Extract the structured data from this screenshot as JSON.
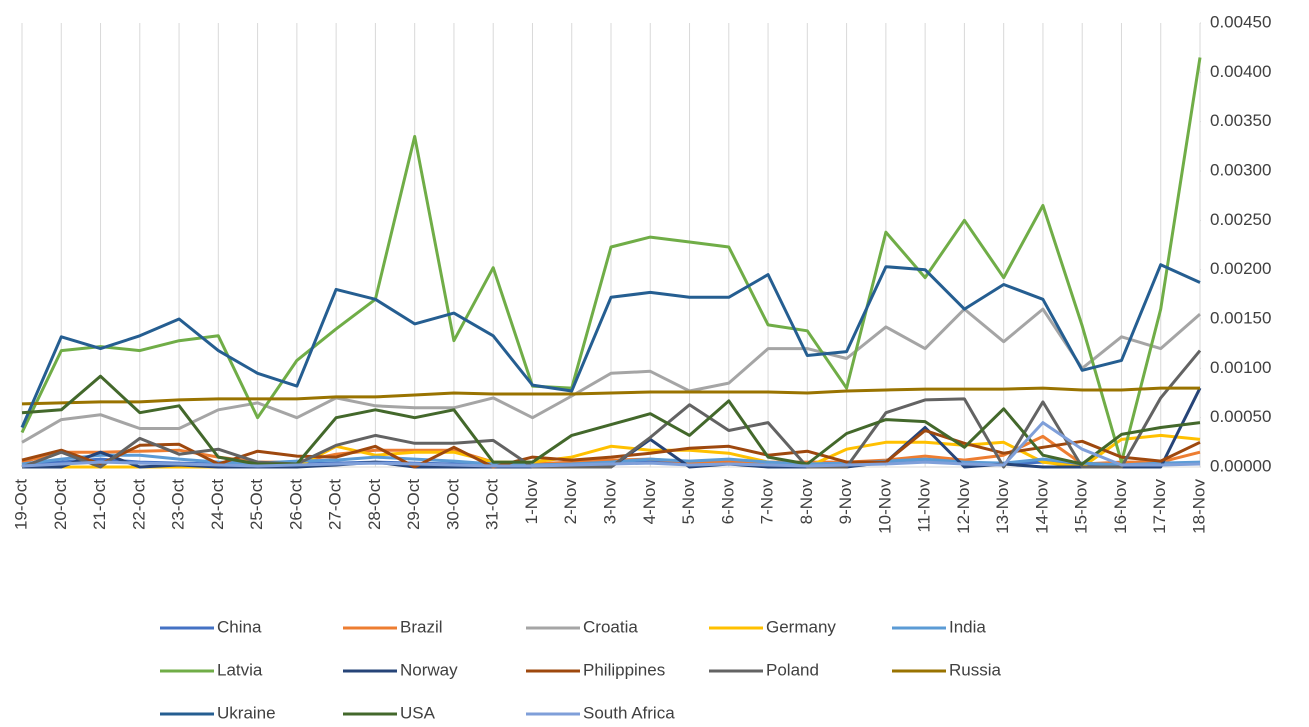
{
  "chart_data": {
    "type": "line",
    "categories": [
      "19-Oct",
      "20-Oct",
      "21-Oct",
      "22-Oct",
      "23-Oct",
      "24-Oct",
      "25-Oct",
      "26-Oct",
      "27-Oct",
      "28-Oct",
      "29-Oct",
      "30-Oct",
      "31-Oct",
      "1-Nov",
      "2-Nov",
      "3-Nov",
      "4-Nov",
      "5-Nov",
      "6-Nov",
      "7-Nov",
      "8-Nov",
      "9-Nov",
      "10-Nov",
      "11-Nov",
      "12-Nov",
      "13-Nov",
      "14-Nov",
      "15-Nov",
      "16-Nov",
      "17-Nov",
      "18-Nov"
    ],
    "ylim": [
      0,
      0.0045
    ],
    "yticks": [
      {
        "value": 0,
        "label": "0.00000"
      },
      {
        "value": 0.0005,
        "label": "0.00050"
      },
      {
        "value": 0.001,
        "label": "0.00100"
      },
      {
        "value": 0.0015,
        "label": "0.00150"
      },
      {
        "value": 0.002,
        "label": "0.00200"
      },
      {
        "value": 0.0025,
        "label": "0.00250"
      },
      {
        "value": 0.003,
        "label": "0.00300"
      },
      {
        "value": 0.0035,
        "label": "0.00350"
      },
      {
        "value": 0.004,
        "label": "0.00400"
      },
      {
        "value": 0.0045,
        "label": "0.00450"
      }
    ],
    "grid": "x",
    "y_axis_side": "right",
    "series": [
      {
        "name": "China",
        "color": "#4472c4",
        "values": [
          2e-05,
          5e-05,
          8e-05,
          5e-05,
          4e-05,
          3e-05,
          2e-05,
          3e-05,
          4e-05,
          5e-05,
          4e-05,
          3e-05,
          2e-05,
          2e-05,
          3e-05,
          4e-05,
          6e-05,
          4e-05,
          5e-05,
          3e-05,
          2e-05,
          3e-05,
          4e-05,
          6e-05,
          4e-05,
          3e-05,
          5e-05,
          3e-05,
          2e-05,
          3e-05,
          4e-05
        ]
      },
      {
        "name": "Brazil",
        "color": "#ed7d31",
        "values": [
          5e-05,
          0.00015,
          0.00015,
          0.00016,
          0.00017,
          0.0001,
          5e-05,
          5e-05,
          0.00013,
          0.00017,
          0.00017,
          0.00017,
          5e-05,
          3e-05,
          5e-05,
          7e-05,
          8e-05,
          5e-05,
          6e-05,
          5e-05,
          5e-05,
          5e-05,
          7e-05,
          0.00011,
          7e-05,
          0.00012,
          0.00031,
          3e-05,
          5e-05,
          5e-05,
          0.00015
        ]
      },
      {
        "name": "Croatia",
        "color": "#a5a5a5",
        "values": [
          0.00025,
          0.00048,
          0.00053,
          0.00039,
          0.00039,
          0.00058,
          0.00065,
          0.0005,
          0.0007,
          0.00062,
          0.0006,
          0.0006,
          0.0007,
          0.0005,
          0.00072,
          0.00095,
          0.00097,
          0.00077,
          0.00085,
          0.0012,
          0.0012,
          0.0011,
          0.00142,
          0.0012,
          0.0016,
          0.00127,
          0.0016,
          0.001,
          0.00132,
          0.0012,
          0.00155
        ]
      },
      {
        "name": "Germany",
        "color": "#ffc000",
        "values": [
          0,
          0,
          0,
          0,
          0,
          0,
          0,
          0,
          0.00021,
          0.00012,
          0.00015,
          0.00015,
          5e-05,
          5e-05,
          0.0001,
          0.00021,
          0.00017,
          0.00017,
          0.00014,
          5e-05,
          0,
          0.00018,
          0.00025,
          0.00025,
          0.00022,
          0.00025,
          5e-05,
          0,
          0.00028,
          0.00032,
          0.00028
        ]
      },
      {
        "name": "India",
        "color": "#5b9bd5",
        "values": [
          3e-05,
          8e-05,
          0.00012,
          0.00012,
          8e-05,
          5e-05,
          4e-05,
          6e-05,
          7e-05,
          0.0001,
          8e-05,
          6e-05,
          3e-05,
          2e-05,
          3e-05,
          5e-05,
          8e-05,
          6e-05,
          8e-05,
          5e-05,
          3e-05,
          4e-05,
          6e-05,
          8e-05,
          5e-05,
          4e-05,
          8e-05,
          4e-05,
          2e-05,
          4e-05,
          5e-05
        ]
      },
      {
        "name": "Latvia",
        "color": "#70ad47",
        "values": [
          0.00035,
          0.00118,
          0.00122,
          0.00118,
          0.00128,
          0.00133,
          0.0005,
          0.00108,
          0.0014,
          0.0017,
          0.00335,
          0.00128,
          0.00202,
          0.00082,
          0.0008,
          0.00223,
          0.00233,
          0.00228,
          0.00223,
          0.00144,
          0.00138,
          0.0008,
          0.00238,
          0.00192,
          0.0025,
          0.00192,
          0.00265,
          0.00143,
          5e-05,
          0.0016,
          0.00415
        ]
      },
      {
        "name": "Norway",
        "color": "#264478",
        "values": [
          0,
          0,
          0.00015,
          0,
          2e-05,
          0,
          0,
          0,
          2e-05,
          5e-05,
          0,
          0,
          0,
          0,
          0,
          0,
          0.00028,
          0,
          3e-05,
          0,
          0,
          0,
          5e-05,
          0.0004,
          0,
          3e-05,
          0,
          0,
          0,
          0,
          0.0008
        ]
      },
      {
        "name": "Philippines",
        "color": "#9e480e",
        "values": [
          7e-05,
          0.00017,
          3e-05,
          0.00022,
          0.00023,
          3e-05,
          0.00016,
          0.00011,
          0.0001,
          0.00021,
          0,
          0.0002,
          0,
          0.0001,
          7e-05,
          0.0001,
          0.00014,
          0.00019,
          0.00021,
          0.00012,
          0.00016,
          5e-05,
          5e-05,
          0.00037,
          0.00024,
          0.00014,
          0.0002,
          0.00026,
          0.0001,
          6e-05,
          0.00025
        ]
      },
      {
        "name": "Poland",
        "color": "#636363",
        "values": [
          0,
          0.00015,
          0,
          0.00029,
          0.00013,
          0.00018,
          5e-05,
          3e-05,
          0.00022,
          0.00032,
          0.00024,
          0.00024,
          0.00027,
          0,
          0,
          0,
          0.0003,
          0.00063,
          0.00037,
          0.00045,
          0,
          0,
          0.00055,
          0.00068,
          0.00069,
          0,
          0.00066,
          0,
          0,
          0.0007,
          0.00118
        ]
      },
      {
        "name": "Russia",
        "color": "#997300",
        "values": [
          0.00064,
          0.00065,
          0.00066,
          0.00066,
          0.00068,
          0.00069,
          0.00069,
          0.00069,
          0.00071,
          0.00071,
          0.00073,
          0.00075,
          0.00074,
          0.00074,
          0.00074,
          0.00075,
          0.00076,
          0.00076,
          0.00076,
          0.00076,
          0.00075,
          0.00077,
          0.00078,
          0.00079,
          0.00079,
          0.00079,
          0.0008,
          0.00078,
          0.00078,
          0.0008,
          0.0008
        ]
      },
      {
        "name": "Ukraine",
        "color": "#255e91",
        "values": [
          0.0004,
          0.00132,
          0.0012,
          0.00133,
          0.0015,
          0.00118,
          0.00095,
          0.00082,
          0.0018,
          0.0017,
          0.00145,
          0.00156,
          0.00133,
          0.00083,
          0.00077,
          0.00172,
          0.00177,
          0.00172,
          0.00172,
          0.00195,
          0.00113,
          0.00117,
          0.00203,
          0.002,
          0.0016,
          0.00185,
          0.0017,
          0.00098,
          0.00108,
          0.00205,
          0.00187
        ]
      },
      {
        "name": "USA",
        "color": "#43682b",
        "values": [
          0.00055,
          0.00058,
          0.00092,
          0.00055,
          0.00062,
          0.0001,
          3e-05,
          3e-05,
          0.0005,
          0.00058,
          0.0005,
          0.00058,
          5e-05,
          5e-05,
          0.00032,
          0.00043,
          0.00054,
          0.00032,
          0.00067,
          0.0001,
          3e-05,
          0.00034,
          0.00048,
          0.00046,
          0.0002,
          0.00059,
          0.00012,
          3e-05,
          0.00033,
          0.0004,
          0.00045
        ]
      },
      {
        "name": "South Africa",
        "color": "#7f9fd9",
        "values": [
          1e-05,
          3e-05,
          5e-05,
          4e-05,
          3e-05,
          2e-05,
          1e-05,
          2e-05,
          3e-05,
          4e-05,
          3e-05,
          2e-05,
          1e-05,
          1e-05,
          2e-05,
          3e-05,
          4e-05,
          2e-05,
          3e-05,
          2e-05,
          1e-05,
          2e-05,
          3e-05,
          5e-05,
          3e-05,
          2e-05,
          0.00045,
          0.00018,
          2e-05,
          2e-05,
          3e-05
        ]
      }
    ]
  }
}
